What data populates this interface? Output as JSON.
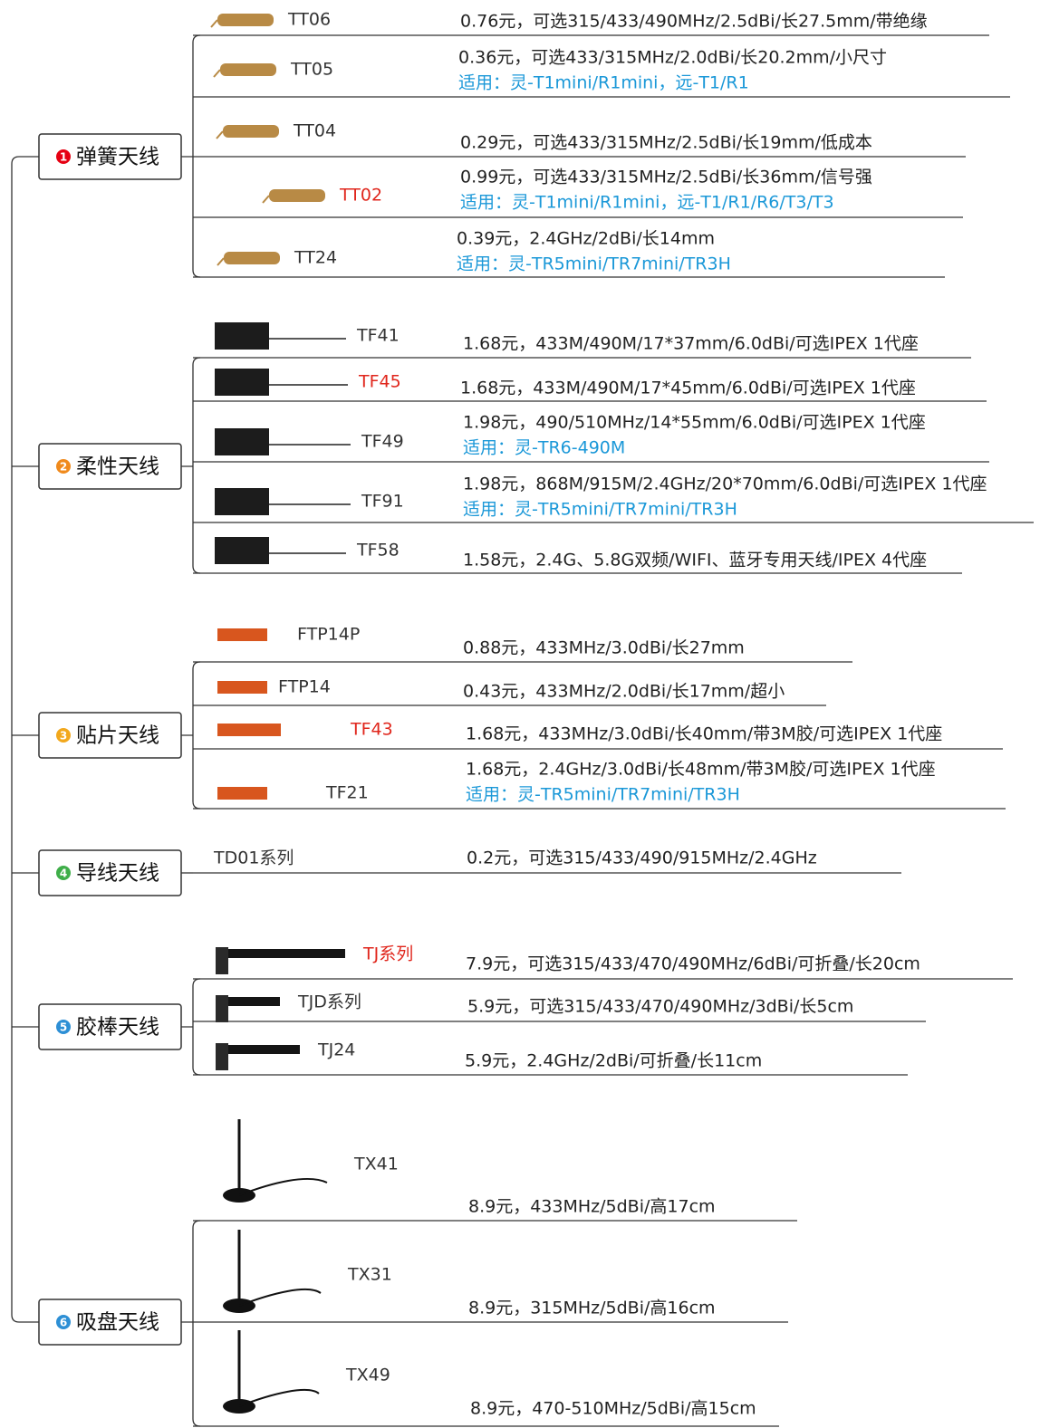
{
  "groups": [
    {
      "number": 1,
      "label": "弹簧天线",
      "color": "#e60012",
      "items": [
        {
          "name": "TT06",
          "desc": "0.76元，可选315/433/490MHz/2.5dBi/长27.5mm/带绝缘"
        },
        {
          "name": "TT05",
          "desc": "0.36元，可选433/315MHz/2.0dBi/长20.2mm/小尺寸",
          "apply": "适用：灵-T1mini/R1mini，远-T1/R1"
        },
        {
          "name": "TT04",
          "desc": "0.29元，可选433/315MHz/2.5dBi/长19mm/低成本"
        },
        {
          "name": "TT02",
          "color": "#e0261c",
          "desc": "0.99元，可选433/315MHz/2.5dBi/长36mm/信号强",
          "apply": "适用：灵-T1mini/R1mini，远-T1/R1/R6/T3/T3"
        },
        {
          "name": "TT24",
          "desc": "0.39元，2.4GHz/2dBi/长14mm",
          "apply": "适用：灵-TR5mini/TR7mini/TR3H"
        }
      ]
    },
    {
      "number": 2,
      "label": "柔性天线",
      "color": "#f08a1c",
      "items": [
        {
          "name": "TF41",
          "desc": "1.68元，433M/490M/17*37mm/6.0dBi/可选IPEX 1代座"
        },
        {
          "name": "TF45",
          "color": "#e0261c",
          "desc": "1.68元，433M/490M/17*45mm/6.0dBi/可选IPEX 1代座"
        },
        {
          "name": "TF49",
          "desc": "1.98元，490/510MHz/14*55mm/6.0dBi/可选IPEX 1代座",
          "apply": "适用：灵-TR6-490M"
        },
        {
          "name": "TF91",
          "desc": "1.98元，868M/915M/2.4GHz/20*70mm/6.0dBi/可选IPEX 1代座",
          "apply": "适用：灵-TR5mini/TR7mini/TR3H"
        },
        {
          "name": "TF58",
          "desc": "1.58元，2.4G、5.8G双频/WIFI、蓝牙专用天线/IPEX 4代座"
        }
      ]
    },
    {
      "number": 3,
      "label": "贴片天线",
      "color": "#f2a81d",
      "items": [
        {
          "name": "FTP14P",
          "desc": "0.88元，433MHz/3.0dBi/长27mm"
        },
        {
          "name": "FTP14",
          "desc": "0.43元，433MHz/2.0dBi/长17mm/超小"
        },
        {
          "name": "TF43",
          "color": "#e0261c",
          "desc": "1.68元，433MHz/3.0dBi/长40mm/带3M胶/可选IPEX 1代座"
        },
        {
          "name": "TF21",
          "desc": "1.68元，2.4GHz/3.0dBi/长48mm/带3M胶/可选IPEX 1代座",
          "apply": "适用：灵-TR5mini/TR7mini/TR3H"
        }
      ]
    },
    {
      "number": 4,
      "label": "导线天线",
      "color": "#3fae49",
      "items": [
        {
          "name": "TD01系列",
          "desc": "0.2元，可选315/433/490/915MHz/2.4GHz"
        }
      ]
    },
    {
      "number": 5,
      "label": "胶棒天线",
      "color": "#2d8fd5",
      "items": [
        {
          "name": "TJ系列",
          "color": "#e0261c",
          "desc": "7.9元，可选315/433/470/490MHz/6dBi/可折叠/长20cm"
        },
        {
          "name": "TJD系列",
          "desc": "5.9元，可选315/433/470/490MHz/3dBi/长5cm"
        },
        {
          "name": "TJ24",
          "desc": "5.9元，2.4GHz/2dBi/可折叠/长11cm"
        }
      ]
    },
    {
      "number": 6,
      "label": "吸盘天线",
      "color": "#2d8fd5",
      "items": [
        {
          "name": "TX41",
          "desc": "8.9元，433MHz/5dBi/高17cm"
        },
        {
          "name": "TX31",
          "desc": "8.9元，315MHz/5dBi/高16cm"
        },
        {
          "name": "TX49",
          "desc": "8.9元，470-510MHz/5dBi/高15cm"
        }
      ]
    }
  ]
}
